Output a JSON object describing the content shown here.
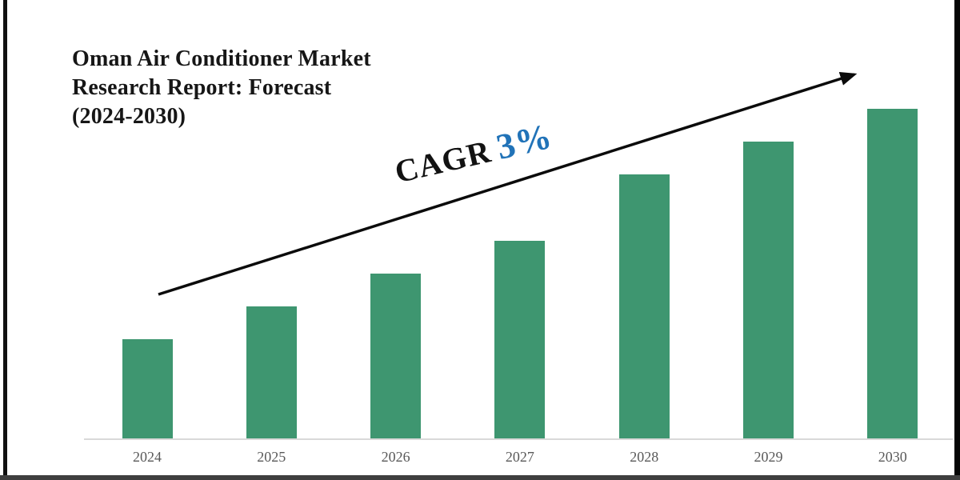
{
  "title": {
    "full": "Oman Air Conditioner Market Research Report: Forecast (2024-2030)",
    "lines": [
      "Oman Air Conditioner Market",
      "Research Report: Forecast",
      "(2024-2030)"
    ]
  },
  "annotation": {
    "cagr_label": "CAGR",
    "cagr_value": "3%"
  },
  "chart_data": {
    "type": "bar",
    "title": "Oman Air Conditioner Market Research Report: Forecast (2024-2030)",
    "categories": [
      "2024",
      "2025",
      "2026",
      "2027",
      "2028",
      "2029",
      "2030"
    ],
    "values": [
      3,
      4,
      5,
      6,
      8,
      9,
      10
    ],
    "value_note": "no y-axis or data labels shown; values are relative bar heights read from pixels",
    "xlabel": "",
    "ylabel": "",
    "ylim": [
      0,
      11
    ],
    "grid": false,
    "legend": false,
    "annotations": [
      {
        "type": "trend-arrow",
        "text": "CAGR 3%",
        "direction": "up-right"
      }
    ]
  },
  "colors": {
    "bar_green": "#3E9670",
    "cagr_value_blue": "#2173B8",
    "title_text": "#161616",
    "axis_line": "#D9D9D9",
    "tick_label": "#595959",
    "arrow_black": "#0B0B0B"
  }
}
